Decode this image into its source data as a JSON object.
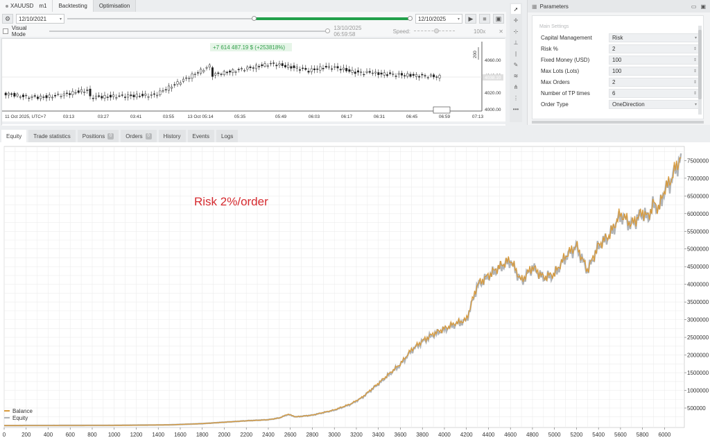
{
  "toolbar": {
    "symbol": "XAUUSD",
    "timeframe": "m1",
    "tabs": [
      "Backtesting",
      "Optimisation"
    ],
    "active_tab": "Backtesting",
    "start_date": "12/10/2021",
    "end_date": "12/10/2025",
    "visual_mode_label": "Visual Mode",
    "current_time": "13/10/2025 06:59:58",
    "speed_label": "Speed:",
    "speed_value": "100x"
  },
  "price_chart": {
    "pnl_label": "+7 614 487.19 $ (+253818%)",
    "y_ticks": [
      "4060.00",
      "4040.00",
      "4020.00",
      "4000.00"
    ],
    "current_price": "4038.10",
    "scale_label": "200",
    "x_ticks": [
      "11 Oct 2025, UTC+7",
      "03:13",
      "03:27",
      "03:41",
      "03:55",
      "13 Oct 05:14",
      "05:35",
      "05:49",
      "06:03",
      "06:17",
      "06:31",
      "06:45",
      "06:59",
      "07:13"
    ]
  },
  "parameters": {
    "title": "Parameters",
    "section": "Main Settings",
    "rows": [
      {
        "label": "Capital Management",
        "value": "Risk",
        "control": "select"
      },
      {
        "label": "Risk %",
        "value": "2",
        "control": "spin"
      },
      {
        "label": "Fixed Money (USD)",
        "value": "100",
        "control": "spin"
      },
      {
        "label": "Max Lots (Lots)",
        "value": "100",
        "control": "spin"
      },
      {
        "label": "Max Orders",
        "value": "2",
        "control": "spin"
      },
      {
        "label": "Number of TP times",
        "value": "6",
        "control": "spin"
      },
      {
        "label": "Order Type",
        "value": "OneDirection",
        "control": "select"
      }
    ]
  },
  "bottom_tabs": [
    {
      "label": "Equity",
      "badge": null,
      "active": true
    },
    {
      "label": "Trade statistics",
      "badge": null,
      "active": false
    },
    {
      "label": "Positions",
      "badge": "0",
      "active": false
    },
    {
      "label": "Orders",
      "badge": "0",
      "active": false
    },
    {
      "label": "History",
      "badge": null,
      "active": false
    },
    {
      "label": "Events",
      "badge": null,
      "active": false
    },
    {
      "label": "Logs",
      "badge": null,
      "active": false
    }
  ],
  "annotation": "Risk 2%/order",
  "legend": [
    {
      "name": "Balance",
      "color": "#d89a3b"
    },
    {
      "name": "Equity",
      "color": "#b0b4b8"
    }
  ],
  "chart_data": {
    "type": "line",
    "x_ticks": [
      0,
      200,
      400,
      600,
      800,
      1000,
      1200,
      1400,
      1600,
      1800,
      2000,
      2200,
      2400,
      2600,
      2800,
      3000,
      3200,
      3400,
      3600,
      3800,
      4000,
      4200,
      4400,
      4600,
      4800,
      5000,
      5200,
      5400,
      5600,
      5800,
      6000
    ],
    "y_ticks": [
      500000,
      1000000,
      1500000,
      2000000,
      2500000,
      3000000,
      3500000,
      4000000,
      4500000,
      5000000,
      5500000,
      6000000,
      6500000,
      7000000,
      7500000
    ],
    "xlim": [
      0,
      6180
    ],
    "ylim": [
      -50000,
      7900000
    ],
    "series": [
      {
        "name": "Balance",
        "color": "#d89a3b",
        "x": [
          0,
          500,
          1000,
          1500,
          1800,
          2000,
          2200,
          2400,
          2500,
          2580,
          2650,
          2800,
          3000,
          3150,
          3250,
          3400,
          3600,
          3700,
          3800,
          3900,
          4000,
          4100,
          4200,
          4300,
          4400,
          4500,
          4600,
          4700,
          4800,
          4900,
          5000,
          5100,
          5200,
          5300,
          5400,
          5500,
          5600,
          5700,
          5800,
          5850,
          5900,
          5950,
          6000,
          6050,
          6100,
          6150
        ],
        "y": [
          5000,
          8000,
          12000,
          25000,
          60000,
          100000,
          140000,
          170000,
          220000,
          330000,
          250000,
          300000,
          450000,
          620000,
          800000,
          1200000,
          1750000,
          2150000,
          2400000,
          2600000,
          2750000,
          2900000,
          3000000,
          4000000,
          4250000,
          4500000,
          4700000,
          4100000,
          4500000,
          4200000,
          4300000,
          4800000,
          5100000,
          4400000,
          5100000,
          5400000,
          6000000,
          5700000,
          6050000,
          5900000,
          6300000,
          6150000,
          6700000,
          6900000,
          7300000,
          7600000
        ]
      },
      {
        "name": "Equity",
        "color": "#b0b4b8",
        "x": [
          0,
          500,
          1000,
          1500,
          1800,
          2000,
          2200,
          2400,
          2500,
          2580,
          2650,
          2800,
          3000,
          3150,
          3250,
          3400,
          3600,
          3700,
          3800,
          3900,
          4000,
          4100,
          4200,
          4300,
          4400,
          4500,
          4600,
          4700,
          4800,
          4900,
          5000,
          5100,
          5200,
          5300,
          5400,
          5500,
          5600,
          5700,
          5800,
          5850,
          5900,
          5950,
          6000,
          6050,
          6100,
          6150
        ],
        "y": [
          5000,
          8000,
          12000,
          25000,
          60000,
          100000,
          140000,
          170000,
          220000,
          320000,
          250000,
          300000,
          440000,
          610000,
          790000,
          1180000,
          1730000,
          2120000,
          2380000,
          2570000,
          2720000,
          2870000,
          2980000,
          3960000,
          4220000,
          4460000,
          4670000,
          4070000,
          4470000,
          4170000,
          4270000,
          4770000,
          5060000,
          4370000,
          5070000,
          5370000,
          5960000,
          5670000,
          6010000,
          5860000,
          6260000,
          6110000,
          6660000,
          6860000,
          7260000,
          7560000
        ]
      }
    ],
    "grid": true,
    "legend_position": "bottom-left"
  }
}
